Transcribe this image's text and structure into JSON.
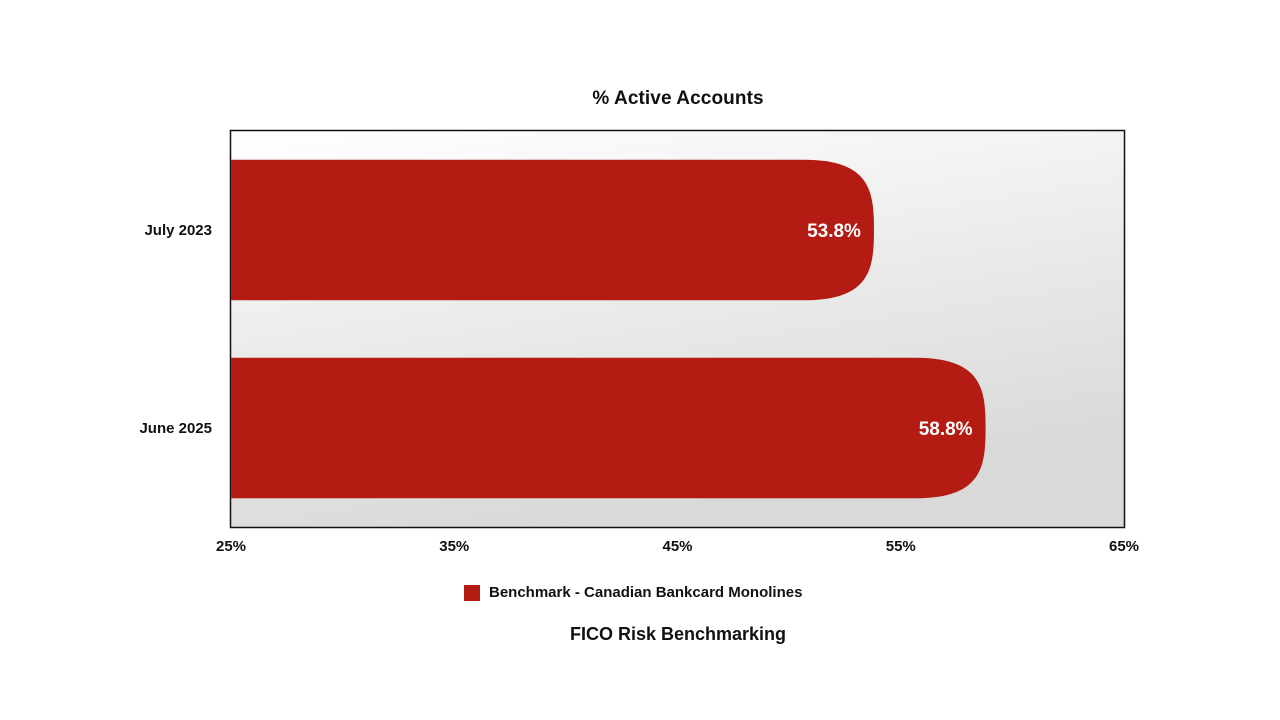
{
  "chart_data": {
    "type": "bar",
    "orientation": "horizontal",
    "title": "% Active Accounts",
    "categories": [
      "July 2023",
      "June 2025"
    ],
    "series": [
      {
        "name": "Benchmark - Canadian Bankcard Monolines",
        "values": [
          53.8,
          58.8
        ],
        "labels": [
          "53.8%",
          "58.8%"
        ],
        "color": "#b31b13"
      }
    ],
    "xlim": [
      25,
      65
    ],
    "xticks": [
      25,
      35,
      45,
      55,
      65
    ],
    "xtick_labels": [
      "25%",
      "35%",
      "45%",
      "55%",
      "65%"
    ],
    "grid": false,
    "legend": "bottom"
  },
  "footer": {
    "title": "FICO Risk Benchmarking"
  }
}
